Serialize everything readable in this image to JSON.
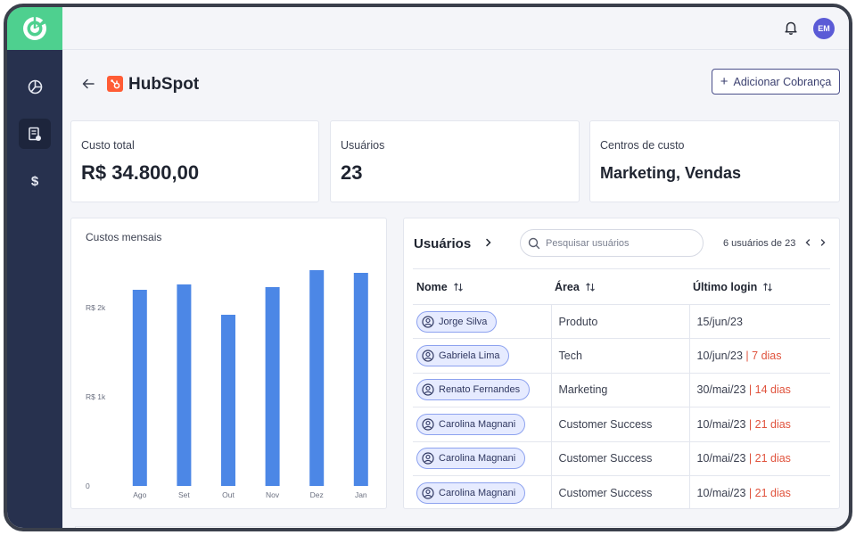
{
  "topbar": {
    "avatar_initials": "EM",
    "bell_icon": "bell-icon"
  },
  "sidebar": {
    "items": [
      {
        "icon": "pie-chart-icon",
        "active": false
      },
      {
        "icon": "document-icon",
        "active": true
      },
      {
        "icon": "dollar-icon",
        "label": "$",
        "active": false
      }
    ]
  },
  "header": {
    "title": "HubSpot",
    "add_button_label": "Adicionar Cobrança",
    "add_button_plus": "+"
  },
  "kpis": [
    {
      "label": "Custo total",
      "value": "R$ 34.800,00"
    },
    {
      "label": "Usuários",
      "value": "23"
    },
    {
      "label": "Centros de custo",
      "value": "Marketing, Vendas"
    }
  ],
  "chart_data": {
    "type": "bar",
    "title": "Custos mensais",
    "categories": [
      "Ago",
      "Set",
      "Out",
      "Nov",
      "Dez",
      "Jan"
    ],
    "values": [
      2200,
      2260,
      1920,
      2230,
      2420,
      2390
    ],
    "yticks": [
      0,
      1000,
      2000
    ],
    "ytick_labels": [
      "0",
      "R$ 1k",
      "R$ 2k"
    ],
    "ylim": [
      0,
      2700
    ],
    "color": "#4c87e6",
    "grid": false
  },
  "users": {
    "title": "Usuários",
    "search_placeholder": "Pesquisar usuários",
    "pager_text": "6 usuários de 23",
    "columns": [
      "Nome",
      "Área",
      "Último login"
    ],
    "sep": "|",
    "rows": [
      {
        "name": "Jorge Silva",
        "area": "Produto",
        "login": "15/jun/23",
        "days": ""
      },
      {
        "name": "Gabriela Lima",
        "area": "Tech",
        "login": "10/jun/23",
        "days": "7 dias"
      },
      {
        "name": "Renato Fernandes",
        "area": "Marketing",
        "login": "30/mai/23",
        "days": "14 dias"
      },
      {
        "name": "Carolina Magnani",
        "area": "Customer Success",
        "login": "10/mai/23",
        "days": "21 dias"
      },
      {
        "name": "Carolina Magnani",
        "area": "Customer Success",
        "login": "10/mai/23",
        "days": "21 dias"
      },
      {
        "name": "Carolina Magnani",
        "area": "Customer Success",
        "login": "10/mai/23",
        "days": "21 dias"
      }
    ]
  },
  "colors": {
    "sidebar": "#27314e",
    "logo_bg": "#4ed08f",
    "accent": "#5b5bd6",
    "warning": "#e0533d",
    "hubspot": "#ff5c35"
  }
}
